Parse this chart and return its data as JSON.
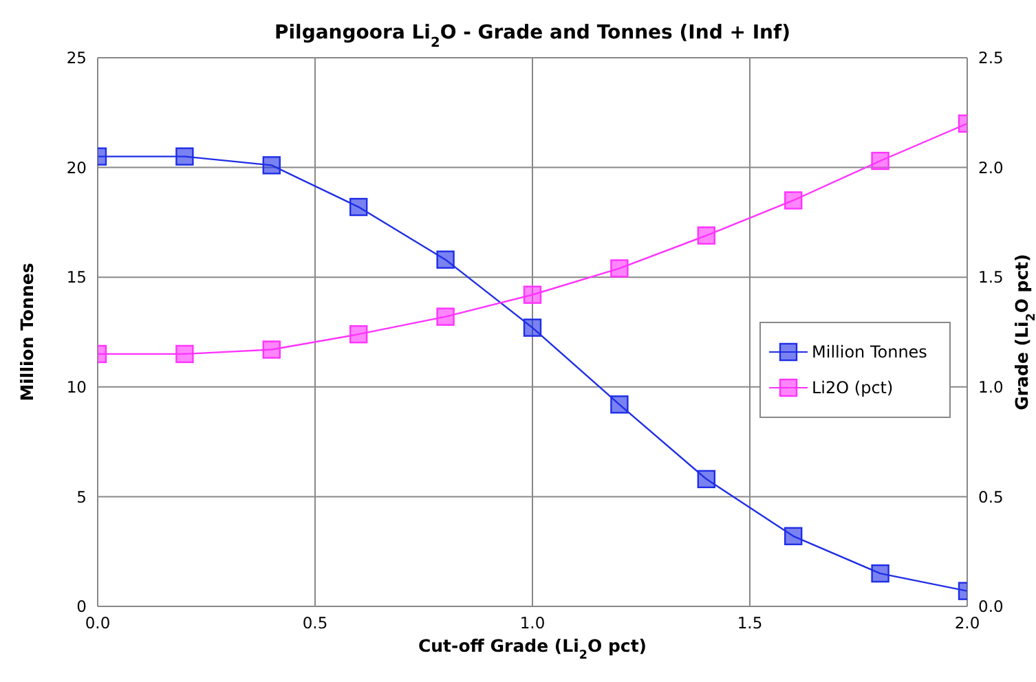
{
  "chart_data": {
    "type": "line",
    "title": "Pilgangoora Li$_{2}$O - Grade and Tonnes (Ind + Inf)",
    "xlabel": "Cut-off Grade (Li$_{2}$O pct)",
    "ylabel": "Million Tonnes",
    "y2label": "Grade (Li$_{2}$O pct)",
    "x": [
      0,
      0.2,
      0.4,
      0.6,
      0.8,
      1.0,
      1.2,
      1.4,
      1.6,
      1.8,
      2.0
    ],
    "series": [
      {
        "name": "Million Tonnes",
        "color": "#1f2ee6",
        "values": [
          20.5,
          20.5,
          20.1,
          18.2,
          15.8,
          12.7,
          9.2,
          5.8,
          3.2,
          1.5,
          0.7
        ]
      },
      {
        "name": "Li2O (pct)",
        "color": "#ff33ff",
        "axis": "y2",
        "values": [
          1.15,
          1.15,
          1.17,
          1.24,
          1.32,
          1.42,
          1.54,
          1.69,
          1.85,
          2.03,
          2.2
        ]
      }
    ],
    "xlim": [
      0,
      2
    ],
    "xticks": [
      {
        "value": 0,
        "label": "0.0"
      },
      0.5,
      {
        "value": 1,
        "label": "1.0"
      },
      1.5,
      {
        "value": 2,
        "label": "2.0"
      }
    ],
    "ylim": [
      0,
      25
    ],
    "yticks": [
      0,
      5,
      10,
      15,
      20,
      25
    ],
    "y2lim": [
      0,
      2.5
    ],
    "y2ticks": [
      {
        "value": 0,
        "label": "0.0"
      },
      0.5,
      {
        "value": 1,
        "label": "1.0"
      },
      1.5,
      {
        "value": 2,
        "label": "2.0"
      },
      2.5
    ],
    "grid": true,
    "legend": "right",
    "marker": "square",
    "line_style": "solid"
  }
}
